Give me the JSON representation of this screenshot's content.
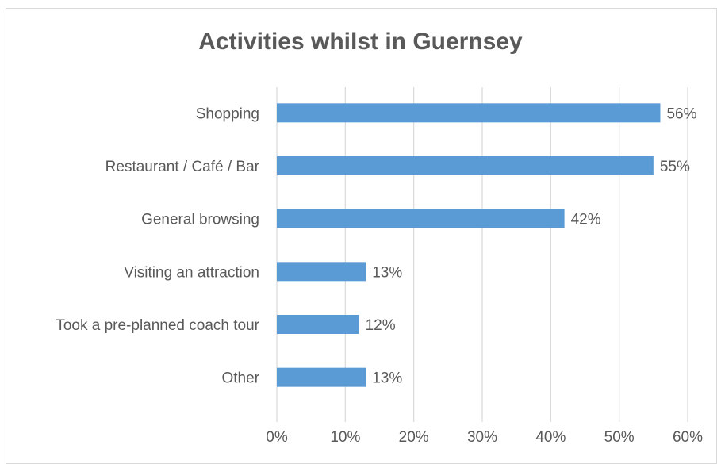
{
  "chart_data": {
    "type": "bar",
    "orientation": "horizontal",
    "title": "Activities whilst in Guernsey",
    "categories": [
      "Shopping",
      "Restaurant / Café / Bar",
      "General browsing",
      "Visiting an attraction",
      "Took a pre-planned coach tour",
      "Other"
    ],
    "values": [
      56,
      55,
      42,
      13,
      12,
      13
    ],
    "data_labels": [
      "56%",
      "55%",
      "42%",
      "13%",
      "12%",
      "13%"
    ],
    "xlim": [
      0,
      60
    ],
    "x_ticks": [
      0,
      10,
      20,
      30,
      40,
      50,
      60
    ],
    "x_tick_labels": [
      "0%",
      "10%",
      "20%",
      "30%",
      "40%",
      "50%",
      "60%"
    ],
    "grid": "vertical",
    "legend": "none",
    "colors": {
      "bar": "#5b9bd5",
      "grid": "#d9d9d9",
      "text": "#595959",
      "title": "#595959"
    }
  }
}
